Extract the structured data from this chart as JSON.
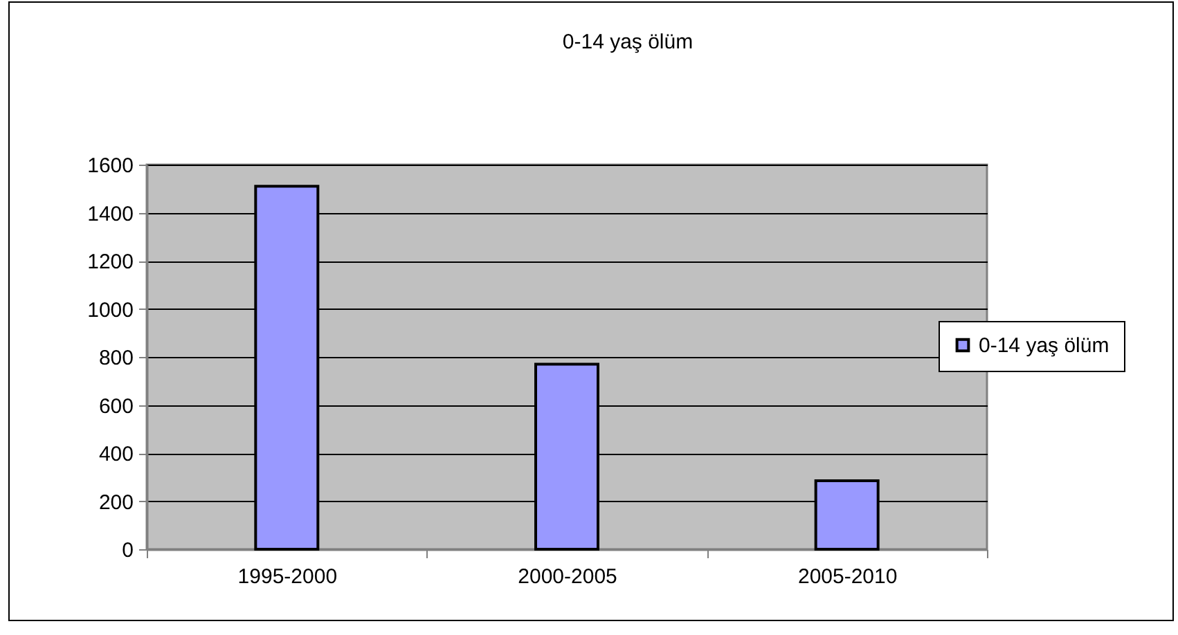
{
  "chart_data": {
    "type": "bar",
    "title": "0-14 yaş ölüm",
    "categories": [
      "1995-2000",
      "2000-2005",
      "2005-2010"
    ],
    "series": [
      {
        "name": "0-14 yaş ölüm",
        "color": "#9999ff",
        "values": [
          1510,
          770,
          285
        ]
      }
    ],
    "ylim": [
      0,
      1600
    ],
    "yticks": [
      0,
      200,
      400,
      600,
      800,
      1000,
      1200,
      1400,
      1600
    ],
    "grid": "y",
    "legend": "right"
  }
}
